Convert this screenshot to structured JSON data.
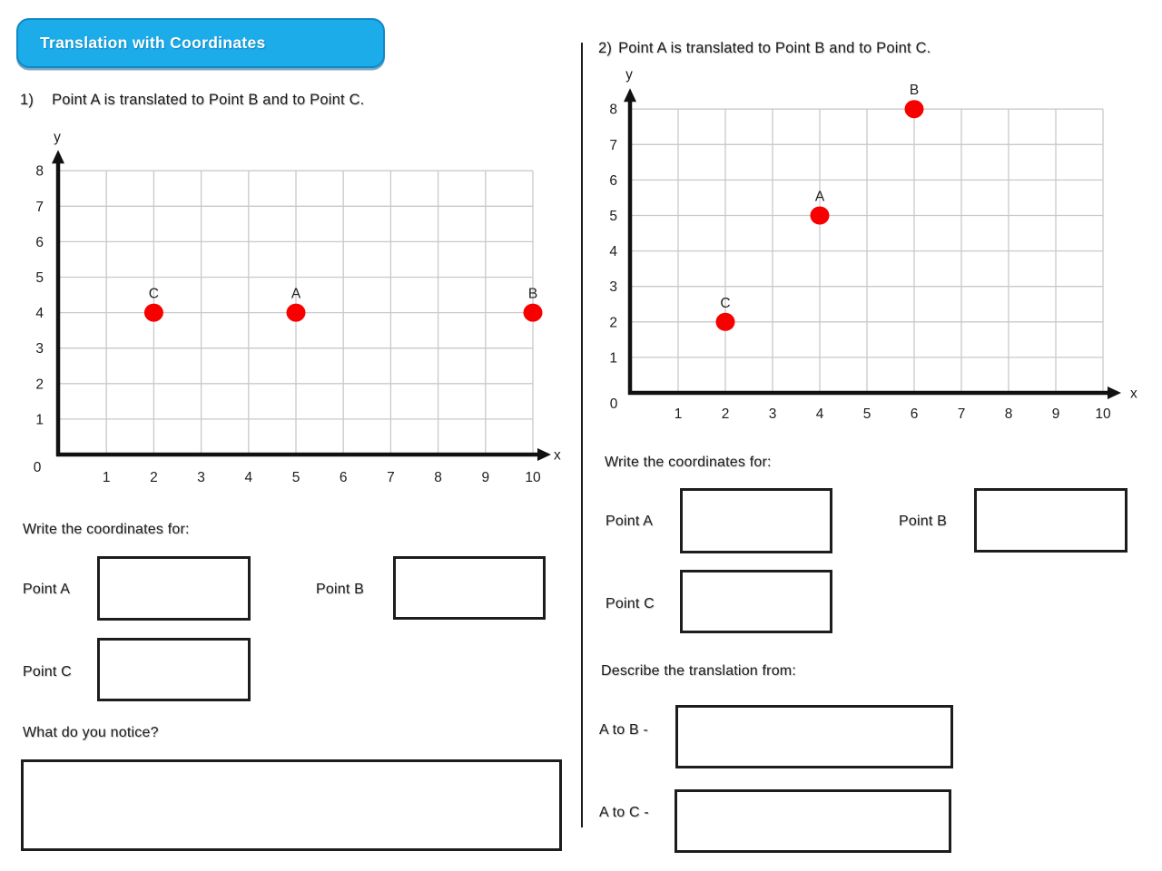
{
  "header": {
    "title": "Translation with Coordinates",
    "bg": "#1cace9"
  },
  "left": {
    "question_number": "1)",
    "question_text": "Point A is translated to Point B and to Point C.",
    "write_label": "Write the coordinates for:",
    "fields": [
      {
        "label": "Point A",
        "value": ""
      },
      {
        "label": "Point B",
        "value": ""
      },
      {
        "label": "Point C",
        "value": ""
      }
    ],
    "notice_label": "What do you notice?",
    "notice_value": ""
  },
  "right": {
    "question_number": "2)",
    "question_text": "Point A is translated to Point B and to Point C.",
    "write_label": "Write the coordinates for:",
    "fields": [
      {
        "label": "Point A",
        "value": ""
      },
      {
        "label": "Point B",
        "value": ""
      },
      {
        "label": "Point C",
        "value": ""
      }
    ],
    "describe_label": "Describe the translation from:",
    "translations": [
      {
        "label": "A to B -",
        "value": ""
      },
      {
        "label": "A to C -",
        "value": ""
      }
    ]
  },
  "chart_data": [
    {
      "type": "scatter",
      "title": "1) Point A is translated to Point B and to Point C.",
      "xlabel": "x",
      "ylabel": "y",
      "origin_label": "0",
      "xlim": [
        0,
        10
      ],
      "ylim": [
        0,
        8
      ],
      "x_ticks": [
        1,
        2,
        3,
        4,
        5,
        6,
        7,
        8,
        9,
        10
      ],
      "y_ticks": [
        1,
        2,
        3,
        4,
        5,
        6,
        7,
        8
      ],
      "grid": true,
      "legend": "none",
      "point_color": "#f80000",
      "points": [
        {
          "label": "C",
          "x": 2,
          "y": 4
        },
        {
          "label": "A",
          "x": 5,
          "y": 4
        },
        {
          "label": "B",
          "x": 10,
          "y": 4
        }
      ]
    },
    {
      "type": "scatter",
      "title": "2) Point A is translated to Point B and to Point C.",
      "xlabel": "x",
      "ylabel": "y",
      "origin_label": "0",
      "xlim": [
        0,
        10
      ],
      "ylim": [
        0,
        8
      ],
      "x_ticks": [
        1,
        2,
        3,
        4,
        5,
        6,
        7,
        8,
        9,
        10
      ],
      "y_ticks": [
        1,
        2,
        3,
        4,
        5,
        6,
        7,
        8
      ],
      "grid": true,
      "legend": "none",
      "point_color": "#f80000",
      "points": [
        {
          "label": "C",
          "x": 2,
          "y": 2
        },
        {
          "label": "A",
          "x": 4,
          "y": 5
        },
        {
          "label": "B",
          "x": 6,
          "y": 8
        }
      ]
    }
  ]
}
